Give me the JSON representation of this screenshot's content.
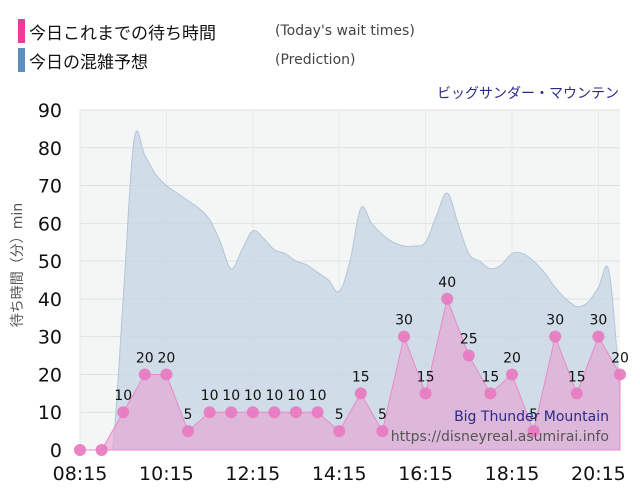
{
  "legend": [
    {
      "label": "今日これまでの待ち時間",
      "sub": "(Today's wait times)",
      "color": "#ee3b96"
    },
    {
      "label": "今日の混雑予想",
      "sub": "(Prediction)",
      "color": "#5b8fc0"
    }
  ],
  "chart_data": {
    "type": "area",
    "title": "ビッグサンダー・マウンテン",
    "ylabel": "待ち時間（分）min",
    "xlabel": "",
    "ylim": [
      0,
      90
    ],
    "yticks": [
      0,
      10,
      20,
      30,
      40,
      50,
      60,
      70,
      80,
      90
    ],
    "xlim": [
      "08:15",
      "20:45"
    ],
    "xticks": [
      "08:15",
      "10:15",
      "12:15",
      "14:15",
      "16:15",
      "18:15",
      "20:15"
    ],
    "grid": true,
    "series": [
      {
        "kind": "prediction",
        "color": "#c7d6e4",
        "x": [
          "08:15",
          "08:30",
          "08:45",
          "09:00",
          "09:15",
          "09:30",
          "09:45",
          "10:00",
          "10:15",
          "10:30",
          "10:45",
          "11:00",
          "11:15",
          "11:30",
          "11:45",
          "12:00",
          "12:15",
          "12:30",
          "12:45",
          "13:00",
          "13:15",
          "13:30",
          "13:45",
          "14:00",
          "14:15",
          "14:30",
          "14:45",
          "15:00",
          "15:15",
          "15:30",
          "15:45",
          "16:00",
          "16:15",
          "16:30",
          "16:45",
          "17:00",
          "17:15",
          "17:30",
          "17:45",
          "18:00",
          "18:15",
          "18:30",
          "18:45",
          "19:00",
          "19:15",
          "19:30",
          "19:45",
          "20:00",
          "20:15",
          "20:30",
          "20:45"
        ],
        "values": [
          0,
          0,
          0,
          0,
          40,
          82,
          78,
          73,
          70,
          68,
          66,
          64,
          61,
          55,
          48,
          53,
          58,
          56,
          53,
          52,
          50,
          49,
          47,
          45,
          42,
          50,
          64,
          60,
          57,
          55,
          54,
          54,
          55,
          62,
          68,
          60,
          52,
          50,
          48,
          49,
          52,
          52,
          50,
          47,
          43,
          40,
          38,
          39,
          43,
          47,
          15
        ]
      },
      {
        "kind": "actual",
        "color": "#ee3b96",
        "x": [
          "08:15",
          "08:45",
          "09:15",
          "09:45",
          "10:15",
          "10:45",
          "11:15",
          "11:45",
          "12:15",
          "12:45",
          "13:15",
          "13:45",
          "14:15",
          "14:45",
          "15:15",
          "15:45",
          "16:15",
          "16:45",
          "17:15",
          "17:45",
          "18:15",
          "18:45",
          "19:15",
          "19:45",
          "20:15",
          "20:45"
        ],
        "values": [
          0,
          0,
          10,
          20,
          20,
          5,
          10,
          10,
          10,
          10,
          10,
          10,
          5,
          15,
          5,
          30,
          15,
          40,
          25,
          15,
          20,
          5,
          30,
          15,
          30,
          20
        ],
        "labels": [
          "",
          "",
          "10",
          "20",
          "20",
          "5",
          "10",
          "10",
          "10",
          "10",
          "10",
          "10",
          "5",
          "15",
          "5",
          "30",
          "15",
          "40",
          "25",
          "15",
          "20",
          "5",
          "30",
          "15",
          "30",
          "20"
        ]
      }
    ],
    "annotations": [
      "Big Thunder Mountain",
      "https://disneyreal.asumirai.info"
    ]
  }
}
